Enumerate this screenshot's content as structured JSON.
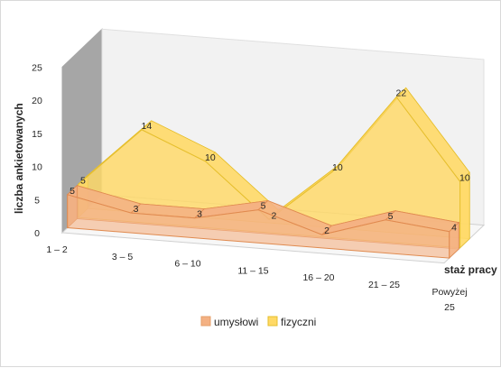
{
  "chart_data": {
    "type": "area",
    "subtype": "3d-area",
    "categories": [
      [
        "1 – 2"
      ],
      [
        "3 – 5"
      ],
      [
        "6 – 10"
      ],
      [
        "11 – 15"
      ],
      [
        "16 – 20"
      ],
      [
        "21 – 25"
      ],
      [
        "Powyżej",
        "25"
      ]
    ],
    "series": [
      {
        "name": "umysłowi",
        "values": [
          5,
          3,
          3,
          5,
          2,
          5,
          4
        ],
        "color": "#F4B183"
      },
      {
        "name": "fizyczni",
        "values": [
          5,
          14,
          10,
          2,
          10,
          22,
          10
        ],
        "color": "#FFD966"
      }
    ],
    "data_labels": {
      "umyslowi": [
        "5",
        "3",
        "3",
        "5",
        "2",
        "5",
        "4"
      ],
      "fizyczni": [
        "5",
        "14",
        "10",
        "2",
        "10",
        "22",
        "10"
      ]
    },
    "title": "",
    "xlabel": "staż pracy",
    "ylabel": "liczba ankietowanych",
    "yticks": [
      "0",
      "5",
      "10",
      "15",
      "20",
      "25"
    ],
    "ylim": [
      0,
      25
    ],
    "grid": false,
    "legend_position": "bottom"
  }
}
